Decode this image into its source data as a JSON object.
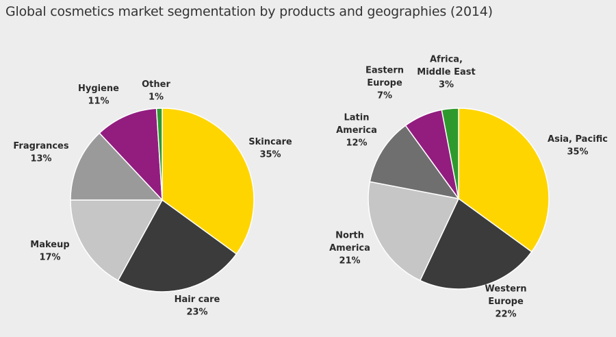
{
  "title": "Global cosmetics market segmentation by products and geographies (2014)",
  "colors": {
    "yellow": "#ffd500",
    "dark": "#3b3b3b",
    "light_gray": "#c6c6c6",
    "mid_gray": "#9a9a9a",
    "charcoal": "#6f6f6f",
    "purple": "#921d7f",
    "green": "#2e9a2e"
  },
  "chart_data": [
    {
      "type": "pie",
      "title": "",
      "slices": [
        {
          "label": [
            "Skincare"
          ],
          "value": 35,
          "value_label": "35%",
          "color": "#ffd500"
        },
        {
          "label": [
            "Hair care"
          ],
          "value": 23,
          "value_label": "23%",
          "color": "#3b3b3b"
        },
        {
          "label": [
            "Makeup"
          ],
          "value": 17,
          "value_label": "17%",
          "color": "#c6c6c6"
        },
        {
          "label": [
            "Fragrances"
          ],
          "value": 13,
          "value_label": "13%",
          "color": "#9a9a9a"
        },
        {
          "label": [
            "Hygiene"
          ],
          "value": 11,
          "value_label": "11%",
          "color": "#921d7f"
        },
        {
          "label": [
            "Other"
          ],
          "value": 1,
          "value_label": "1%",
          "color": "#2e9a2e"
        }
      ]
    },
    {
      "type": "pie",
      "title": "",
      "slices": [
        {
          "label": [
            "Asia, Pacific"
          ],
          "value": 35,
          "value_label": "35%",
          "color": "#ffd500"
        },
        {
          "label": [
            "Western",
            "Europe"
          ],
          "value": 22,
          "value_label": "22%",
          "color": "#3b3b3b"
        },
        {
          "label": [
            "North",
            "America"
          ],
          "value": 21,
          "value_label": "21%",
          "color": "#c6c6c6"
        },
        {
          "label": [
            "Latin",
            "America"
          ],
          "value": 12,
          "value_label": "12%",
          "color": "#6f6f6f"
        },
        {
          "label": [
            "Eastern",
            "Europe"
          ],
          "value": 7,
          "value_label": "7%",
          "color": "#921d7f"
        },
        {
          "label": [
            "Africa,",
            "Middle East"
          ],
          "value": 3,
          "value_label": "3%",
          "color": "#2e9a2e"
        }
      ]
    }
  ]
}
